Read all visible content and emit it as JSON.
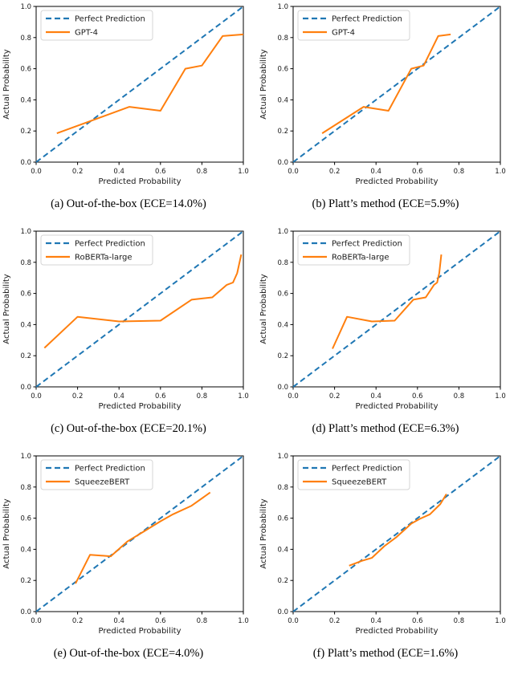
{
  "figure": {
    "description": "Reliability diagrams (calibration curves) for three models, out-of-the-box vs Platt's method"
  },
  "colors": {
    "perfect_line": "#1f77b4",
    "model_line": "#ff7f0e",
    "axis": "#000000",
    "text": "#1a1a1a",
    "legend_border": "#d5d5d5",
    "legend_bg": "#ffffff"
  },
  "axes": {
    "xlabel": "Predicted Probability",
    "ylabel": "Actual Probability",
    "tick_labels": [
      "0.0",
      "0.2",
      "0.4",
      "0.6",
      "0.8",
      "1.0"
    ],
    "tick_values": [
      0.0,
      0.2,
      0.4,
      0.6,
      0.8,
      1.0
    ],
    "xlim": [
      0.0,
      1.0
    ],
    "ylim": [
      0.0,
      1.0
    ],
    "grid": "off",
    "legend_position": "upper left"
  },
  "chart_data": [
    {
      "id": "a",
      "type": "line",
      "caption": "(a) Out-of-the-box (ECE=14.0%)",
      "xlabel": "Predicted Probability",
      "ylabel": "Actual Probability",
      "xlim": [
        0.0,
        1.0
      ],
      "ylim": [
        0.0,
        1.0
      ],
      "legend_position": "upper left",
      "series": [
        {
          "name": "Perfect Prediction",
          "style": "dashed",
          "color": "#1f77b4",
          "points": [
            [
              0.0,
              0.0
            ],
            [
              1.0,
              1.0
            ]
          ]
        },
        {
          "name": "GPT-4",
          "style": "solid",
          "color": "#ff7f0e",
          "points": [
            [
              0.1,
              0.185
            ],
            [
              0.45,
              0.355
            ],
            [
              0.6,
              0.33
            ],
            [
              0.72,
              0.6
            ],
            [
              0.8,
              0.62
            ],
            [
              0.9,
              0.81
            ],
            [
              1.0,
              0.82
            ]
          ]
        }
      ]
    },
    {
      "id": "b",
      "type": "line",
      "caption": "(b) Platt’s method (ECE=5.9%)",
      "xlabel": "Predicted Probability",
      "ylabel": "Actual Probability",
      "xlim": [
        0.0,
        1.0
      ],
      "ylim": [
        0.0,
        1.0
      ],
      "legend_position": "upper left",
      "series": [
        {
          "name": "Perfect Prediction",
          "style": "dashed",
          "color": "#1f77b4",
          "points": [
            [
              0.0,
              0.0
            ],
            [
              1.0,
              1.0
            ]
          ]
        },
        {
          "name": "GPT-4",
          "style": "solid",
          "color": "#ff7f0e",
          "points": [
            [
              0.14,
              0.185
            ],
            [
              0.34,
              0.355
            ],
            [
              0.46,
              0.33
            ],
            [
              0.57,
              0.6
            ],
            [
              0.63,
              0.62
            ],
            [
              0.7,
              0.81
            ],
            [
              0.76,
              0.82
            ]
          ]
        }
      ]
    },
    {
      "id": "c",
      "type": "line",
      "caption": "(c) Out-of-the-box (ECE=20.1%)",
      "xlabel": "Predicted Probability",
      "ylabel": "Actual Probability",
      "xlim": [
        0.0,
        1.0
      ],
      "ylim": [
        0.0,
        1.0
      ],
      "legend_position": "upper left",
      "series": [
        {
          "name": "Perfect Prediction",
          "style": "dashed",
          "color": "#1f77b4",
          "points": [
            [
              0.0,
              0.0
            ],
            [
              1.0,
              1.0
            ]
          ]
        },
        {
          "name": "RoBERTa-large",
          "style": "solid",
          "color": "#ff7f0e",
          "points": [
            [
              0.04,
              0.25
            ],
            [
              0.2,
              0.45
            ],
            [
              0.4,
              0.42
            ],
            [
              0.6,
              0.425
            ],
            [
              0.75,
              0.56
            ],
            [
              0.85,
              0.575
            ],
            [
              0.92,
              0.655
            ],
            [
              0.95,
              0.67
            ],
            [
              0.97,
              0.73
            ],
            [
              0.99,
              0.85
            ]
          ]
        }
      ]
    },
    {
      "id": "d",
      "type": "line",
      "caption": "(d) Platt’s method (ECE=6.3%)",
      "xlabel": "Predicted Probability",
      "ylabel": "Actual Probability",
      "xlim": [
        0.0,
        1.0
      ],
      "ylim": [
        0.0,
        1.0
      ],
      "legend_position": "upper left",
      "series": [
        {
          "name": "Perfect Prediction",
          "style": "dashed",
          "color": "#1f77b4",
          "points": [
            [
              0.0,
              0.0
            ],
            [
              1.0,
              1.0
            ]
          ]
        },
        {
          "name": "RoBERTa-large",
          "style": "solid",
          "color": "#ff7f0e",
          "points": [
            [
              0.19,
              0.245
            ],
            [
              0.26,
              0.45
            ],
            [
              0.38,
              0.42
            ],
            [
              0.49,
              0.425
            ],
            [
              0.58,
              0.56
            ],
            [
              0.64,
              0.575
            ],
            [
              0.68,
              0.655
            ],
            [
              0.695,
              0.67
            ],
            [
              0.705,
              0.73
            ],
            [
              0.715,
              0.85
            ]
          ]
        }
      ]
    },
    {
      "id": "e",
      "type": "line",
      "caption": "(e) Out-of-the-box (ECE=4.0%)",
      "xlabel": "Predicted Probability",
      "ylabel": "Actual Probability",
      "xlim": [
        0.0,
        1.0
      ],
      "ylim": [
        0.0,
        1.0
      ],
      "legend_position": "upper left",
      "series": [
        {
          "name": "Perfect Prediction",
          "style": "dashed",
          "color": "#1f77b4",
          "points": [
            [
              0.0,
              0.0
            ],
            [
              1.0,
              1.0
            ]
          ]
        },
        {
          "name": "SqueezeBERT",
          "style": "solid",
          "color": "#ff7f0e",
          "points": [
            [
              0.19,
              0.18
            ],
            [
              0.26,
              0.365
            ],
            [
              0.36,
              0.355
            ],
            [
              0.44,
              0.45
            ],
            [
              0.52,
              0.515
            ],
            [
              0.6,
              0.58
            ],
            [
              0.66,
              0.625
            ],
            [
              0.75,
              0.68
            ],
            [
              0.84,
              0.765
            ]
          ]
        }
      ]
    },
    {
      "id": "f",
      "type": "line",
      "caption": "(f) Platt’s method (ECE=1.6%)",
      "xlabel": "Predicted Probability",
      "ylabel": "Actual Probability",
      "xlim": [
        0.0,
        1.0
      ],
      "ylim": [
        0.0,
        1.0
      ],
      "legend_position": "upper left",
      "series": [
        {
          "name": "Perfect Prediction",
          "style": "dashed",
          "color": "#1f77b4",
          "points": [
            [
              0.0,
              0.0
            ],
            [
              1.0,
              1.0
            ]
          ]
        },
        {
          "name": "SqueezeBERT",
          "style": "solid",
          "color": "#ff7f0e",
          "points": [
            [
              0.27,
              0.295
            ],
            [
              0.33,
              0.325
            ],
            [
              0.38,
              0.345
            ],
            [
              0.44,
              0.42
            ],
            [
              0.5,
              0.48
            ],
            [
              0.57,
              0.565
            ],
            [
              0.61,
              0.595
            ],
            [
              0.66,
              0.625
            ],
            [
              0.71,
              0.69
            ],
            [
              0.74,
              0.755
            ]
          ]
        }
      ]
    }
  ]
}
